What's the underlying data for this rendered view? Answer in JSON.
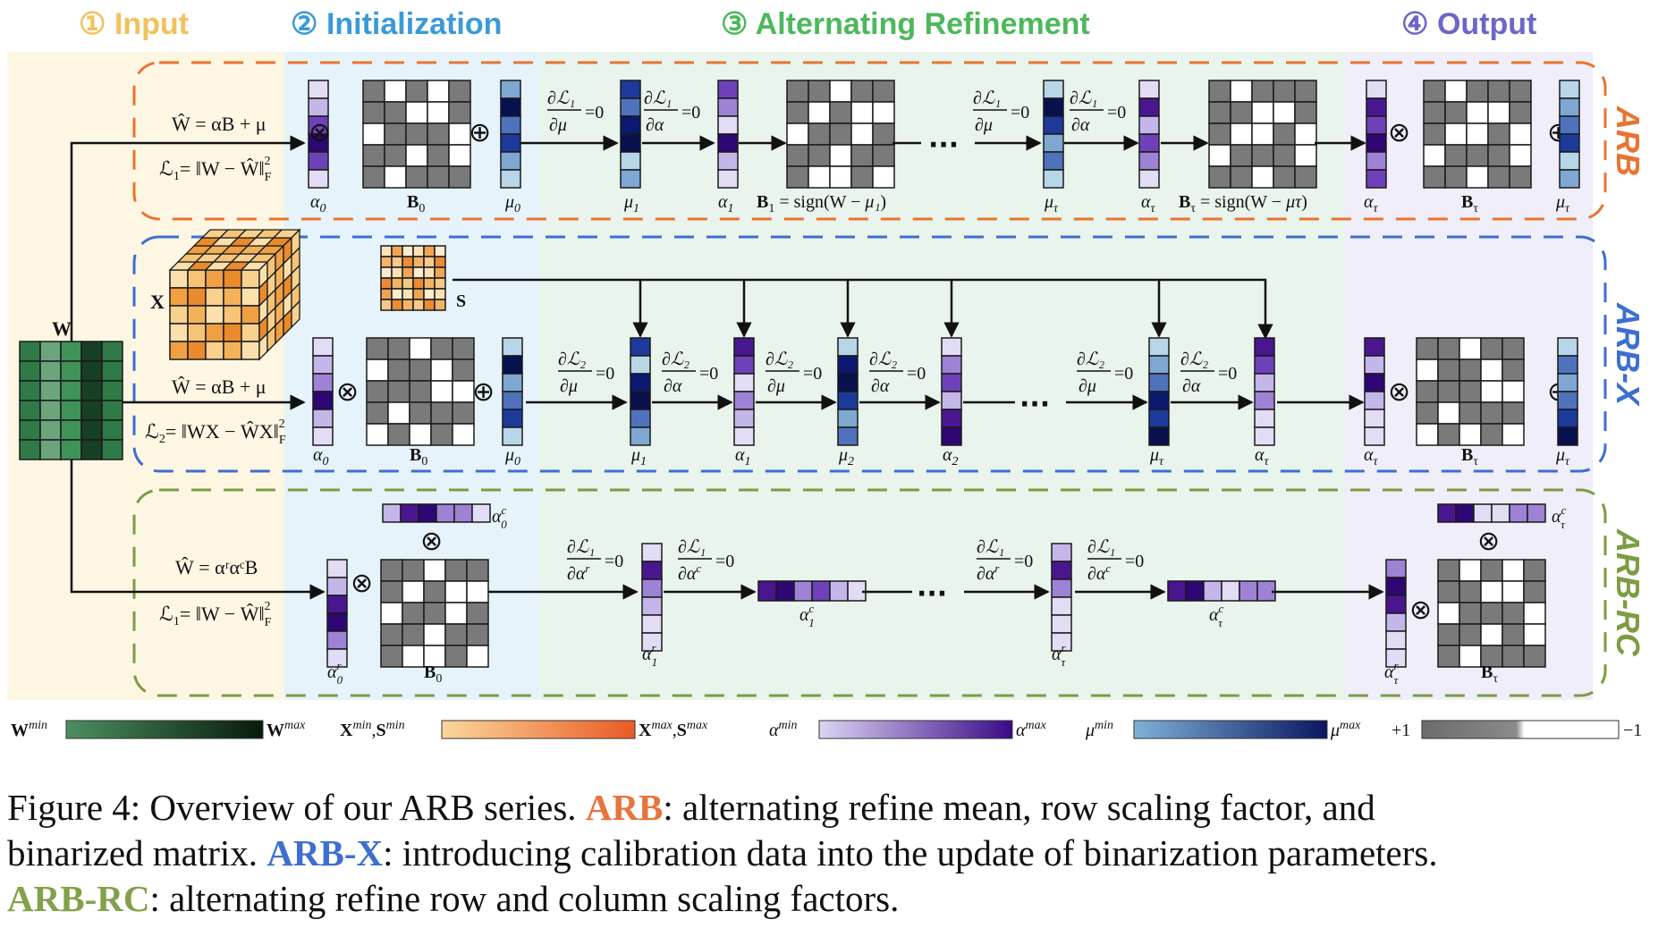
{
  "stages": [
    {
      "num": "①",
      "label": "Input",
      "color": "#f3c15b"
    },
    {
      "num": "②",
      "label": "Initialization",
      "color": "#3a9ad9"
    },
    {
      "num": "③",
      "label": "Alternating Refinement",
      "color": "#4db85b"
    },
    {
      "num": "④",
      "label": "Output",
      "color": "#6b66c8"
    }
  ],
  "variants": {
    "arb": {
      "name": "ARB",
      "color": "#e97431",
      "eq_w": "Ŵ = αB + μ",
      "loss_pre": "ℒ",
      "loss_sub": "1",
      "loss_post": "= ‖W − Ŵ‖",
      "loss_norm_sub": "F",
      "loss_norm_sup": "2"
    },
    "arbx": {
      "name": "ARB-X",
      "color": "#3d6fd0",
      "eq_w": "Ŵ = αB + μ",
      "loss_pre": "ℒ",
      "loss_sub": "2",
      "loss_post": "= ‖WX − ŴX‖",
      "loss_norm_sub": "F",
      "loss_norm_sup": "2"
    },
    "arbrc": {
      "name": "ARB-RC",
      "color": "#7d9c43",
      "eq_w": "Ŵ = αʳαᶜB",
      "loss_pre": "ℒ",
      "loss_sub": "1",
      "loss_post": "= ‖W − Ŵ‖",
      "loss_norm_sub": "F",
      "loss_norm_sup": "2"
    }
  },
  "symbols": {
    "W": "W",
    "X": "X",
    "S": "S",
    "dots": "···",
    "alpha": "α",
    "mu": "μ",
    "B": "B",
    "sub0": "0",
    "sub1": "1",
    "sub2": "2",
    "subtau": "τ",
    "otimes": "⊗",
    "oplus": "⊕",
    "partial": "∂",
    "eq0": "=0",
    "L1": "ℒ₁",
    "L2": "ℒ₂",
    "sign_pre": "= sign(W − ",
    "sign_post": ")",
    "mu1": "μ₁",
    "mutau": "μτ",
    "r": "r",
    "c": "c"
  },
  "legend": {
    "w_min": "W",
    "w_max": "W",
    "x_min": "X",
    "s_min": "S",
    "x_max": "X",
    "s_max": "S",
    "a_min": "α",
    "a_max": "α",
    "m_min": "μ",
    "m_max": "μ",
    "sup_min": "min",
    "sup_max": "max",
    "comma": ",",
    "plus1": "+1",
    "minus1": "−1"
  },
  "caption": {
    "line1_pre": "Figure 4:  Overview of our ARB series.  ",
    "arb": "ARB",
    "line1_post": ": alternating refine mean, row scaling factor, and",
    "line2_pre": "binarized matrix. ",
    "arbx": "ARB-X",
    "line2_post": ": introducing calibration data into the update of binarization parameters.",
    "arbrc": "ARB-RC",
    "line3_post": ": alternating refine row and column scaling factors."
  }
}
